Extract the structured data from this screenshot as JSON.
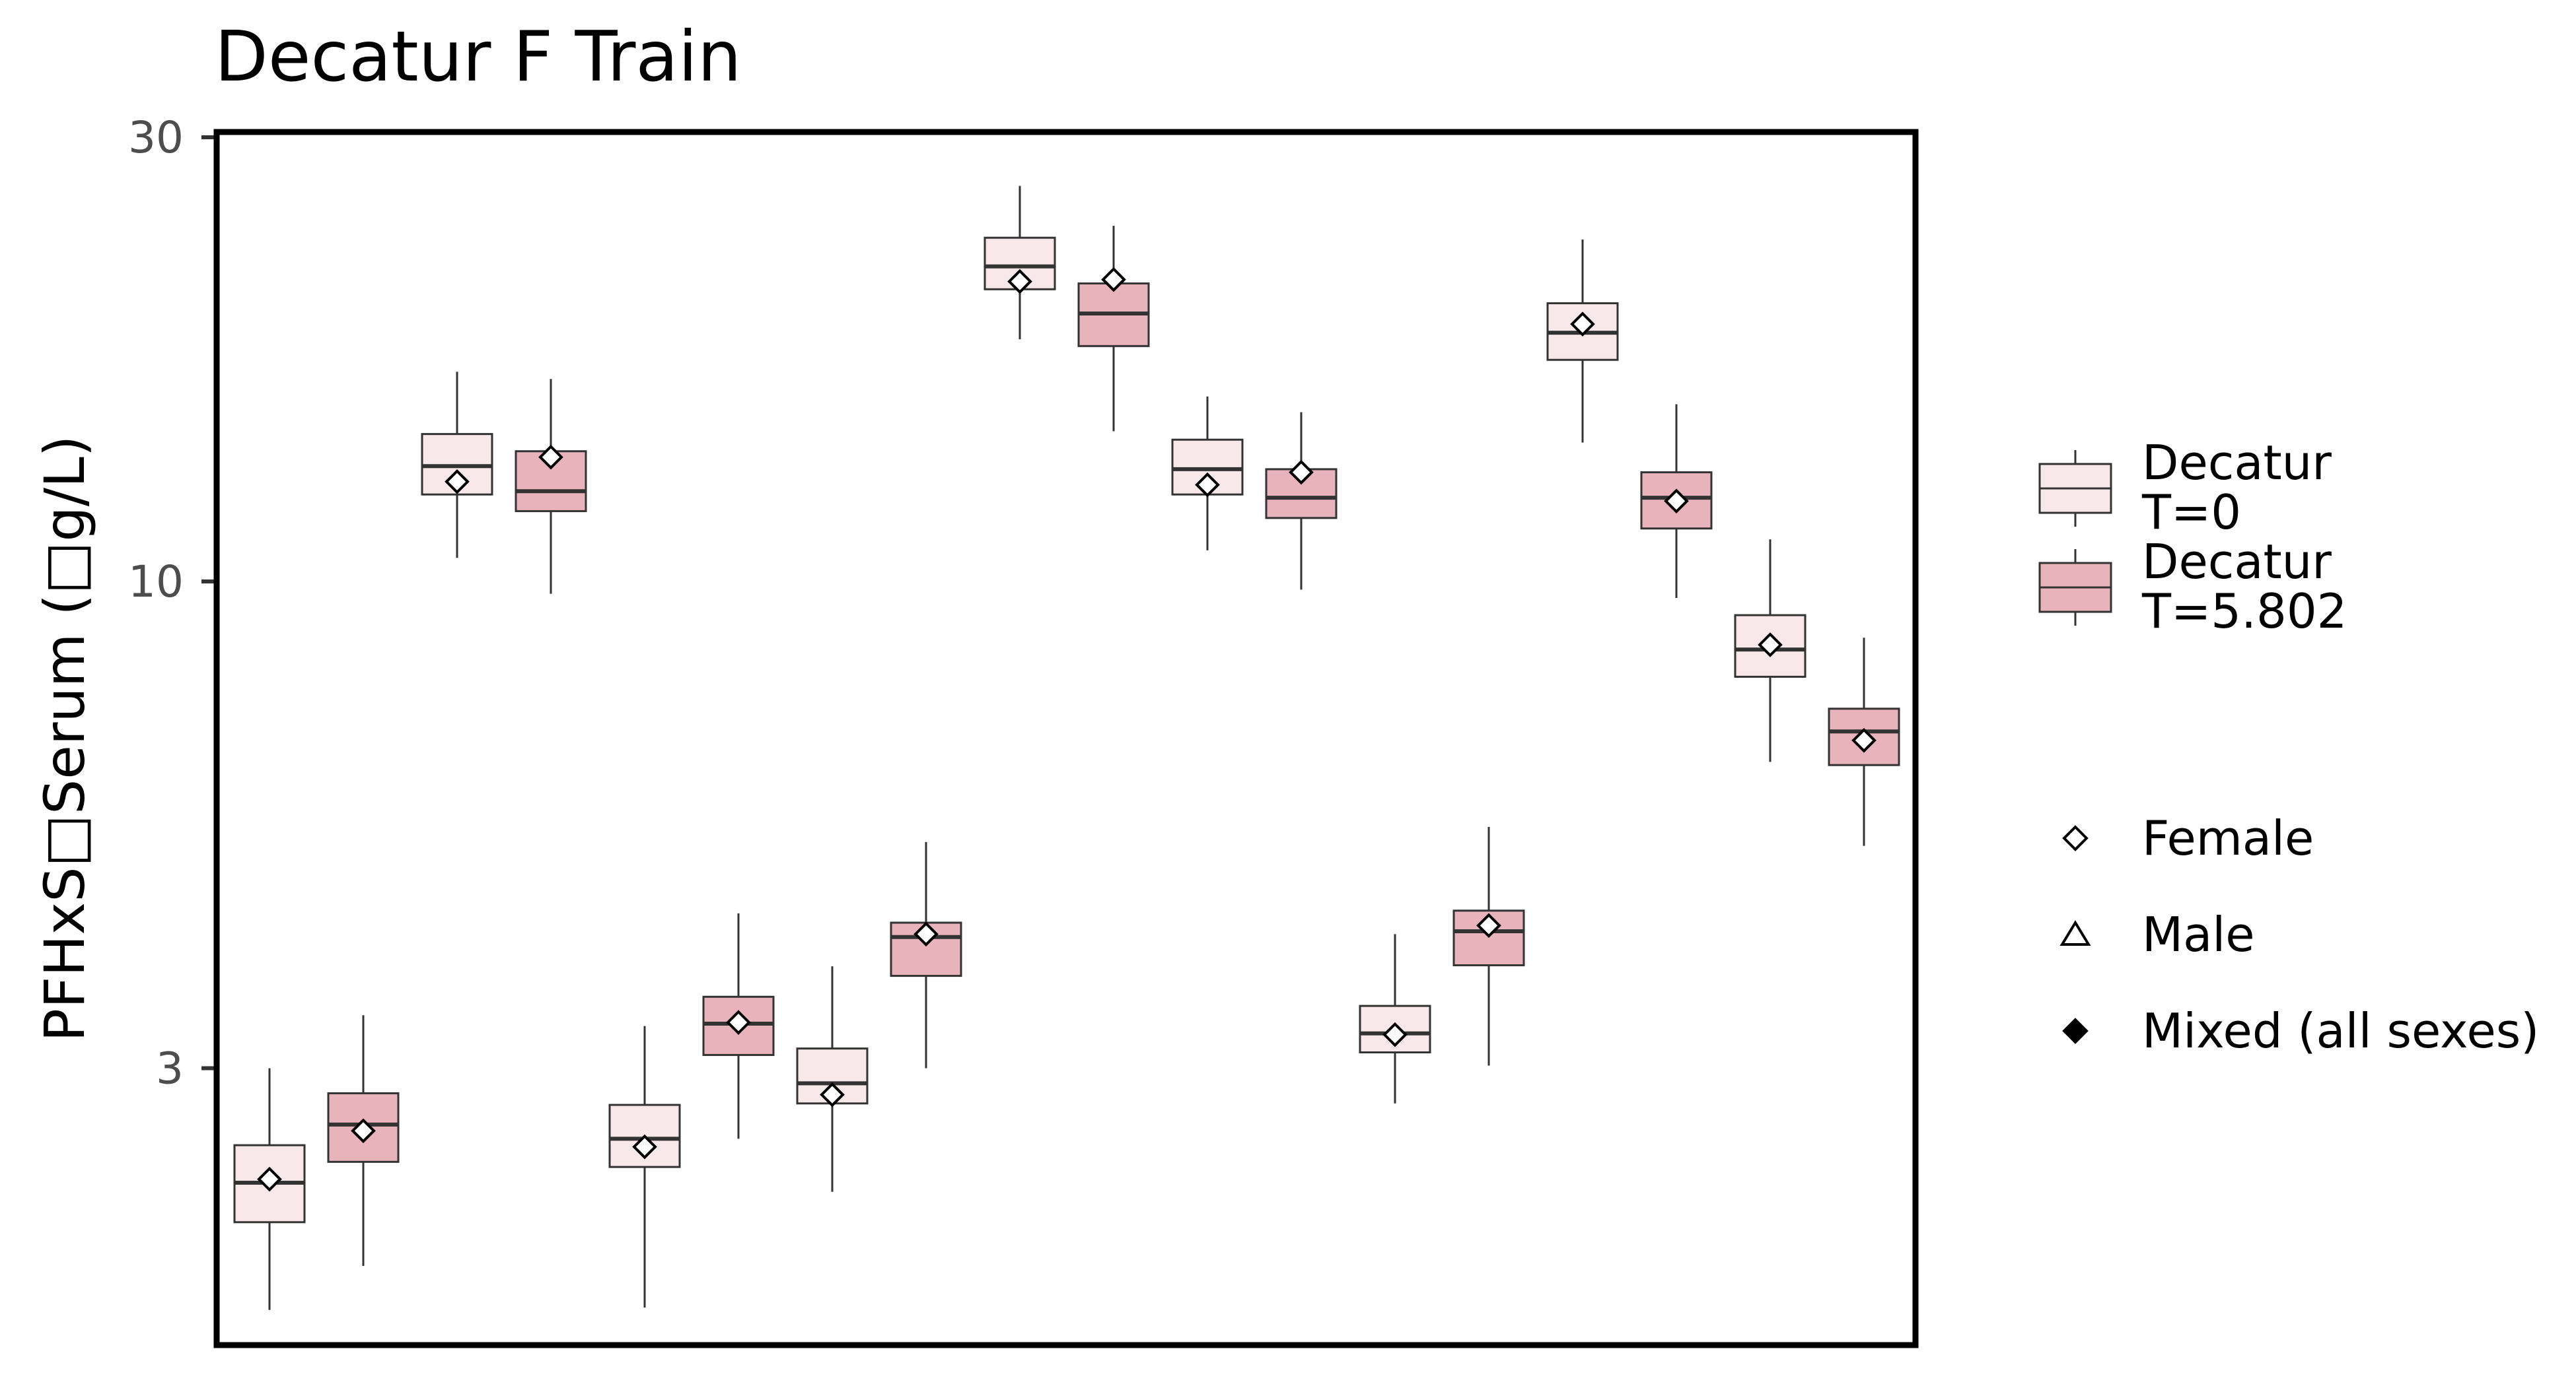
{
  "chart_data": {
    "type": "box",
    "title": "Decatur F Train",
    "ylabel": "PFHxS□Serum (□g/L)",
    "xlabel": "",
    "yscale": "log",
    "ylim": [
      1.3,
      30
    ],
    "yticks": [
      3,
      10,
      30
    ],
    "ytick_labels": [
      "3",
      "10",
      "30"
    ],
    "series": [
      {
        "name": "Decatur\nT=0",
        "fill": "#f9e8ea",
        "boxes": [
          {
            "whislo": 1.65,
            "q1": 2.05,
            "med": 2.26,
            "q3": 2.48,
            "whishi": 3.0,
            "mean": 2.28,
            "marker": "Female"
          },
          {
            "whislo": 10.6,
            "q1": 12.4,
            "med": 13.3,
            "q3": 14.4,
            "whishi": 16.8,
            "mean": 12.8,
            "marker": "Female"
          },
          {
            "whislo": 1.66,
            "q1": 2.35,
            "med": 2.52,
            "q3": 2.74,
            "whishi": 3.33,
            "mean": 2.47,
            "marker": "Female"
          },
          {
            "whislo": 2.21,
            "q1": 2.75,
            "med": 2.89,
            "q3": 3.15,
            "whishi": 3.86,
            "mean": 2.81,
            "marker": "Female"
          },
          {
            "whislo": 18.2,
            "q1": 20.6,
            "med": 21.8,
            "q3": 23.4,
            "whishi": 26.6,
            "mean": 21.0,
            "marker": "Female"
          },
          {
            "whislo": 10.8,
            "q1": 12.4,
            "med": 13.2,
            "q3": 14.2,
            "whishi": 15.8,
            "mean": 12.7,
            "marker": "Female"
          },
          {
            "whislo": 2.75,
            "q1": 3.12,
            "med": 3.27,
            "q3": 3.5,
            "whishi": 4.18,
            "mean": 3.26,
            "marker": "Female"
          },
          {
            "whislo": 14.1,
            "q1": 17.3,
            "med": 18.5,
            "q3": 19.9,
            "whishi": 23.3,
            "mean": 18.9,
            "marker": "Female"
          },
          {
            "whislo": 6.4,
            "q1": 7.9,
            "med": 8.45,
            "q3": 9.2,
            "whishi": 11.1,
            "mean": 8.55,
            "marker": "Female"
          }
        ]
      },
      {
        "name": "Decatur\nT=5.802",
        "fill": "#e8b3bb",
        "boxes": [
          {
            "whislo": 1.84,
            "q1": 2.38,
            "med": 2.61,
            "q3": 2.82,
            "whishi": 3.42,
            "mean": 2.57,
            "marker": "Female"
          },
          {
            "whislo": 9.7,
            "q1": 11.9,
            "med": 12.5,
            "q3": 13.8,
            "whishi": 16.5,
            "mean": 13.6,
            "marker": "Female"
          },
          {
            "whislo": 2.52,
            "q1": 3.1,
            "med": 3.35,
            "q3": 3.58,
            "whishi": 4.4,
            "mean": 3.36,
            "marker": "Female"
          },
          {
            "whislo": 3.0,
            "q1": 3.77,
            "med": 4.15,
            "q3": 4.3,
            "whishi": 5.25,
            "mean": 4.18,
            "marker": "Female"
          },
          {
            "whislo": 14.5,
            "q1": 17.9,
            "med": 19.4,
            "q3": 20.9,
            "whishi": 24.1,
            "mean": 21.1,
            "marker": "Female"
          },
          {
            "whislo": 9.8,
            "q1": 11.7,
            "med": 12.3,
            "q3": 13.2,
            "whishi": 15.2,
            "mean": 13.1,
            "marker": "Female"
          },
          {
            "whislo": 3.02,
            "q1": 3.87,
            "med": 4.21,
            "q3": 4.43,
            "whishi": 5.45,
            "mean": 4.27,
            "marker": "Female"
          },
          {
            "whislo": 9.6,
            "q1": 11.4,
            "med": 12.3,
            "q3": 13.1,
            "whishi": 15.5,
            "mean": 12.2,
            "marker": "Female"
          },
          {
            "whislo": 5.2,
            "q1": 6.35,
            "med": 6.9,
            "q3": 7.3,
            "whishi": 8.7,
            "mean": 6.75,
            "marker": "Female"
          }
        ]
      }
    ],
    "legend": {
      "position": "right",
      "fill_entries": [
        "Decatur\nT=0",
        "Decatur\nT=5.802"
      ],
      "shape_entries": [
        {
          "label": "Female",
          "shape": "open-diamond"
        },
        {
          "label": "Male",
          "shape": "open-triangle"
        },
        {
          "label": "Mixed (all sexes)",
          "shape": "filled-diamond"
        }
      ]
    },
    "grid": false
  }
}
